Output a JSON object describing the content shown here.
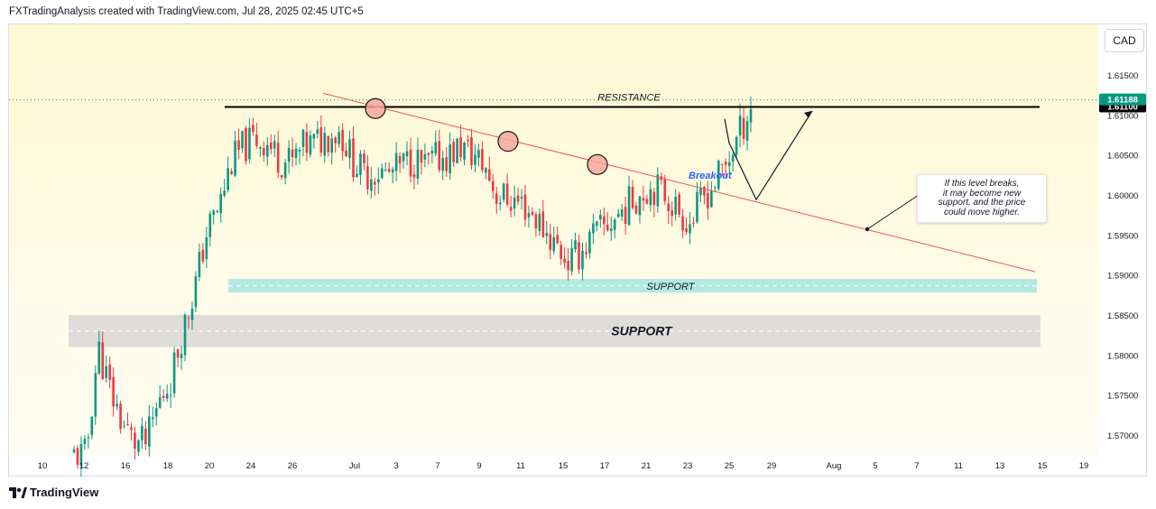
{
  "header": {
    "caption": "FXTradingAnalysis created with TradingView.com, Jul 28, 2025 02:45 UTC+5"
  },
  "footer": {
    "brand": "TradingView"
  },
  "currency_button": "CAD",
  "chart_data": {
    "type": "candlestick",
    "y_axis_labels": [
      "1.61500",
      "1.61000",
      "1.60500",
      "1.60000",
      "1.59500",
      "1.59000",
      "1.58500",
      "1.58000",
      "1.57500",
      "1.57000"
    ],
    "y_axis_values": [
      1.615,
      1.61,
      1.605,
      1.6,
      1.595,
      1.59,
      1.585,
      1.58,
      1.575,
      1.57
    ],
    "ylim": [
      1.5672,
      1.6188
    ],
    "x_axis_labels": [
      "10",
      "12",
      "16",
      "18",
      "20",
      "24",
      "26",
      "Jul",
      "3",
      "7",
      "9",
      "11",
      "15",
      "17",
      "21",
      "23",
      "25",
      "29",
      "Aug",
      "5",
      "7",
      "11",
      "13",
      "15",
      "19"
    ],
    "current_price": "1.61188",
    "resistance_price": "1.61100",
    "colors": {
      "up": "#089981",
      "down": "#f23645",
      "trendline": "#f0524f",
      "support_band": "#7fe0e0",
      "major_support_band": "#d3d3d3",
      "background_top": "#fffbe5",
      "background_bottom": "#fffbe5",
      "breakout_text": "#2962ff"
    },
    "annotations": {
      "resistance_label": "RESISTANCE",
      "support_label": "SUPPORT",
      "major_support_label": "SUPPORT",
      "breakout_label": "Breakout",
      "note_lines": [
        "If this level breaks,",
        "it may become new",
        "support, and the price",
        "could move higher."
      ]
    },
    "resistance_level": 1.611,
    "support_zone": [
      1.5878,
      1.5895
    ],
    "major_support_zone": [
      1.581,
      1.585
    ],
    "trendline": {
      "start_price": 1.6127,
      "end_price": 1.5904
    },
    "touch_points": [
      1.6108,
      1.6067,
      1.6038
    ],
    "projection_path": [
      1.6095,
      1.6065,
      1.5994,
      1.6105
    ],
    "candle_trend": [
      1.5675,
      1.5675,
      1.581,
      1.5755,
      1.5715,
      1.569,
      1.569,
      1.574,
      1.577,
      1.583,
      1.5885,
      1.5955,
      1.5985,
      1.604,
      1.606,
      1.607,
      1.6065,
      1.6045,
      1.604,
      1.606,
      1.6065,
      1.6075,
      1.608,
      1.6045,
      1.6025,
      1.603,
      1.6025,
      1.6035,
      1.6045,
      1.6035,
      1.6045,
      1.605,
      1.606,
      1.605,
      1.6035,
      1.6,
      1.5995,
      1.599,
      1.5975,
      1.5955,
      1.5935,
      1.5915,
      1.593,
      1.595,
      1.596,
      1.5975,
      1.599,
      1.6005,
      1.601,
      1.6,
      1.598,
      1.5965,
      1.5995,
      1.6015,
      1.604,
      1.6075,
      1.6112
    ]
  }
}
